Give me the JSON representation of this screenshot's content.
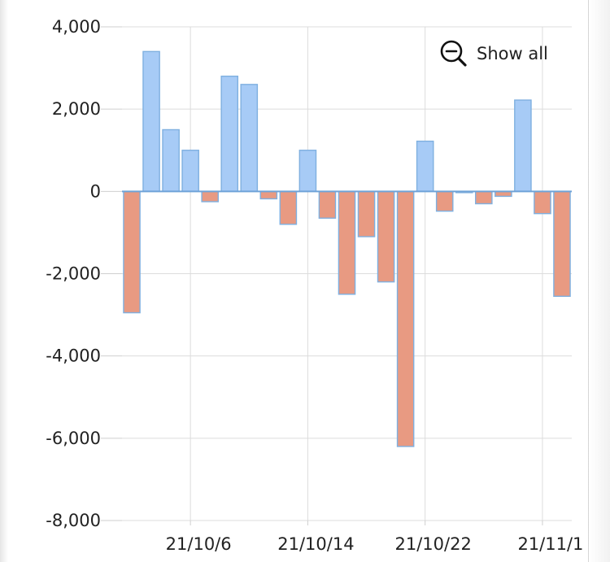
{
  "chart_data": {
    "type": "bar",
    "title": "",
    "xlabel": "",
    "ylabel": "",
    "ylim": [
      -8000,
      4000
    ],
    "y_ticks": [
      4000,
      2000,
      0,
      -2000,
      -4000,
      -6000,
      -8000
    ],
    "y_tick_labels": [
      "4,000",
      "2,000",
      "0",
      "-2,000",
      "-4,000",
      "-6,000",
      "-8,000"
    ],
    "x_tick_labels": [
      "21/10/6",
      "21/10/14",
      "21/10/22",
      "21/11/1"
    ],
    "grid": true,
    "positive_color": "#a7cbf6",
    "negative_color": "#e89a82",
    "bar_border_color": "#7fb0e0",
    "values": [
      -2950,
      3400,
      1500,
      1000,
      -250,
      2800,
      2600,
      -180,
      -800,
      1000,
      -650,
      -2500,
      -1100,
      -2200,
      -6200,
      1220,
      -480,
      -30,
      -300,
      -120,
      2220,
      -540,
      -2550
    ]
  },
  "controls": {
    "show_all_label": "Show all",
    "show_all_icon": "zoom-out-icon"
  }
}
